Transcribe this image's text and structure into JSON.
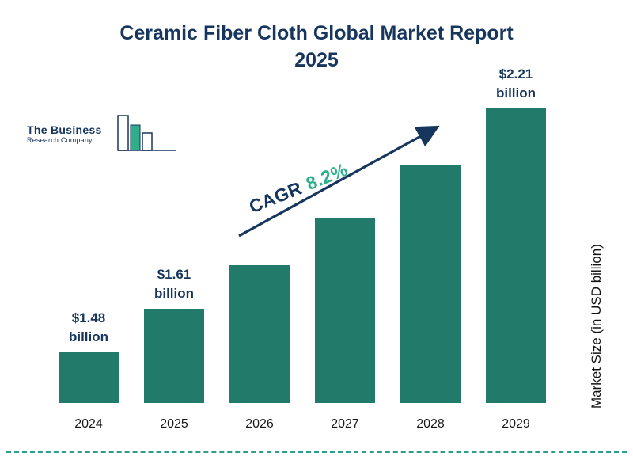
{
  "header": {
    "title_line1": "Ceramic Fiber Cloth Global Market Report",
    "title_line2": "2025"
  },
  "logo": {
    "name_line1": "The Business",
    "name_line2": "Research Company"
  },
  "annotation": {
    "cagr_label": "CAGR",
    "cagr_value": "8.2%"
  },
  "axis": {
    "y_label": "Market Size (in USD billion)"
  },
  "colors": {
    "bar": "#217A6A",
    "navy": "#17365D",
    "green": "#2FAE8B",
    "dashed_line": "#2A9D8F"
  },
  "chart_data": {
    "type": "bar",
    "title": "Ceramic Fiber Cloth Global Market Report 2025",
    "categories": [
      "2024",
      "2025",
      "2026",
      "2027",
      "2028",
      "2029"
    ],
    "values": [
      1.48,
      1.61,
      1.74,
      1.88,
      2.04,
      2.21
    ],
    "value_labels": [
      "$1.48 billion",
      "$1.61 billion",
      null,
      null,
      null,
      "$2.21 billion"
    ],
    "ylabel": "Market Size (in USD billion)",
    "annotation": "CAGR 8.2%",
    "cagr_percent": 8.2,
    "ylim": [
      1.1,
      2.25
    ],
    "legend": false,
    "grid": false
  }
}
